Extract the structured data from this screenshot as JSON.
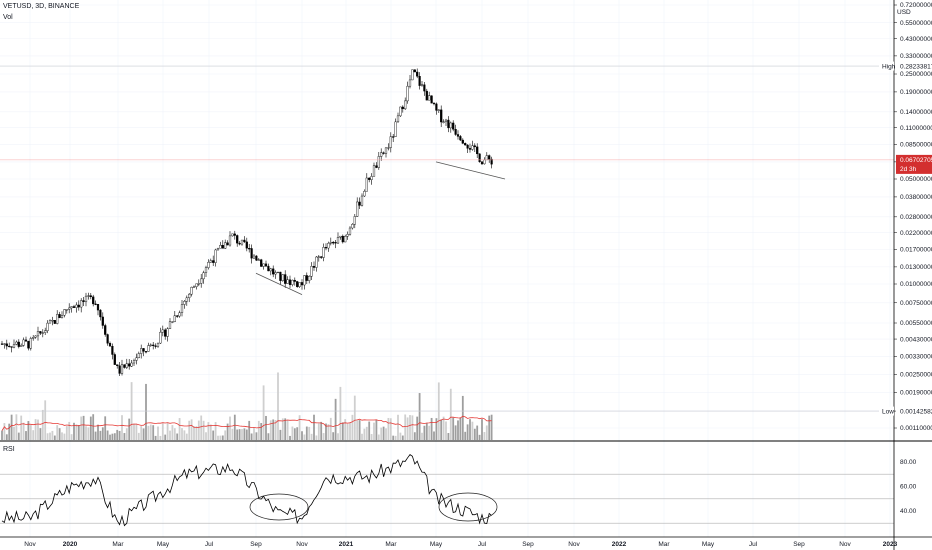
{
  "header": {
    "title": "VETUSD, 3D, BINANCE",
    "vol_label": "Vol",
    "currency": "USD"
  },
  "colors": {
    "candle": "#000000",
    "volume": "#b7b7b7",
    "volume_ma": "#e53935",
    "last_price_line": "#f7a6a6",
    "last_price_tag": "#d32f2f",
    "trendline": "#555555"
  },
  "chart_data": [
    {
      "type": "candlestick",
      "title": "VETUSD, 3D, BINANCE",
      "y_scale": "log",
      "y_unit": "USD",
      "y_ticks": [
        "0.72000000",
        "0.55000000",
        "0.43000000",
        "0.33000000",
        "0.25000000",
        "0.19000000",
        "0.14000000",
        "0.11000000",
        "0.08500000",
        "0.06500000",
        "0.05000000",
        "0.03800000",
        "0.02800000",
        "0.02200000",
        "0.01700000",
        "0.01300000",
        "0.01000000",
        "0.00750000",
        "0.00550000",
        "0.00430000",
        "0.00330000",
        "0.00250000",
        "0.00190000",
        "0.00142582",
        "0.00110000"
      ],
      "x_ticks": [
        "Nov",
        "2020",
        "Mar",
        "May",
        "Jul",
        "Sep",
        "Nov",
        "2021",
        "Mar",
        "May",
        "Jul",
        "Sep",
        "Nov",
        "2022",
        "Mar",
        "May",
        "Jul",
        "Sep",
        "Nov",
        "2023"
      ],
      "high_marker": {
        "label": "High",
        "value": "0.28233817"
      },
      "low_marker": {
        "label": "Low",
        "value": "0.00142582"
      },
      "last_price": {
        "value": "0.06702705",
        "countdown": "2d 3h"
      },
      "price_path": [
        {
          "x": "2019-11",
          "y": 0.004
        },
        {
          "x": "2020-01",
          "y": 0.0072
        },
        {
          "x": "2020-02",
          "y": 0.008
        },
        {
          "x": "2020-03",
          "y": 0.0026
        },
        {
          "x": "2020-05",
          "y": 0.0046
        },
        {
          "x": "2020-07",
          "y": 0.014
        },
        {
          "x": "2020-08",
          "y": 0.021
        },
        {
          "x": "2020-10",
          "y": 0.011
        },
        {
          "x": "2020-11",
          "y": 0.01
        },
        {
          "x": "2020-12",
          "y": 0.017
        },
        {
          "x": "2021-01",
          "y": 0.021
        },
        {
          "x": "2021-02",
          "y": 0.05
        },
        {
          "x": "2021-03",
          "y": 0.09
        },
        {
          "x": "2021-04",
          "y": 0.26
        },
        {
          "x": "2021-05",
          "y": 0.14
        },
        {
          "x": "2021-06",
          "y": 0.1
        },
        {
          "x": "2021-07",
          "y": 0.067
        }
      ],
      "trendlines": [
        {
          "from": {
            "x": "2020-09",
            "y": 0.0118
          },
          "to": {
            "x": "2020-11",
            "y": 0.0085
          }
        },
        {
          "from": {
            "x": "2021-05",
            "y": 0.065
          },
          "to": {
            "x": "2021-08",
            "y": 0.05
          }
        }
      ]
    },
    {
      "type": "bar",
      "title": "Vol",
      "note": "volume bars with moving average"
    },
    {
      "type": "line",
      "title": "RSI",
      "y_ticks": [
        "80.00",
        "60.00",
        "40.00"
      ],
      "levels": [
        70,
        50,
        30
      ],
      "annotations": [
        "ellipse around Sep–Nov 2020 low RSI",
        "ellipse around May–Jul 2021 low RSI"
      ],
      "rsi_path": [
        {
          "x": "2019-11",
          "y": 34
        },
        {
          "x": "2020-01",
          "y": 60
        },
        {
          "x": "2020-02",
          "y": 67
        },
        {
          "x": "2020-03",
          "y": 30
        },
        {
          "x": "2020-06",
          "y": 70
        },
        {
          "x": "2020-08",
          "y": 76
        },
        {
          "x": "2020-10",
          "y": 38
        },
        {
          "x": "2020-11",
          "y": 35
        },
        {
          "x": "2020-12",
          "y": 68
        },
        {
          "x": "2021-02",
          "y": 68
        },
        {
          "x": "2021-04",
          "y": 83
        },
        {
          "x": "2021-05",
          "y": 50
        },
        {
          "x": "2021-07",
          "y": 35
        }
      ]
    }
  ]
}
